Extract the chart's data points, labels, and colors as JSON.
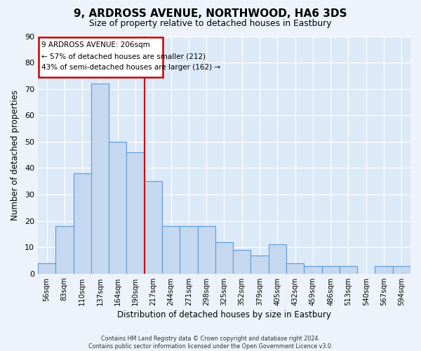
{
  "title1": "9, ARDROSS AVENUE, NORTHWOOD, HA6 3DS",
  "title2": "Size of property relative to detached houses in Eastbury",
  "xlabel": "Distribution of detached houses by size in Eastbury",
  "ylabel": "Number of detached properties",
  "bar_labels": [
    "56sqm",
    "83sqm",
    "110sqm",
    "137sqm",
    "164sqm",
    "190sqm",
    "217sqm",
    "244sqm",
    "271sqm",
    "298sqm",
    "325sqm",
    "352sqm",
    "379sqm",
    "405sqm",
    "432sqm",
    "459sqm",
    "486sqm",
    "513sqm",
    "540sqm",
    "567sqm",
    "594sqm"
  ],
  "bar_values": [
    4,
    18,
    38,
    72,
    50,
    46,
    35,
    18,
    18,
    18,
    12,
    9,
    7,
    11,
    4,
    3,
    3,
    3,
    0,
    3,
    3
  ],
  "bar_color": "#c5d8f0",
  "bar_edge_color": "#5b9bd5",
  "background_color": "#dce9f7",
  "fig_background_color": "#eef3fb",
  "ylim": [
    0,
    90
  ],
  "yticks": [
    0,
    10,
    20,
    30,
    40,
    50,
    60,
    70,
    80,
    90
  ],
  "property_line_x": 5.5,
  "property_line_color": "#cc0000",
  "annotation_title": "9 ARDROSS AVENUE: 206sqm",
  "annotation_line1": "← 57% of detached houses are smaller (212)",
  "annotation_line2": "43% of semi-detached houses are larger (162) →",
  "annotation_box_edge_color": "#cc0000",
  "annotation_box_face_color": "white",
  "footer1": "Contains HM Land Registry data © Crown copyright and database right 2024.",
  "footer2": "Contains public sector information licensed under the Open Government Licence v3.0."
}
